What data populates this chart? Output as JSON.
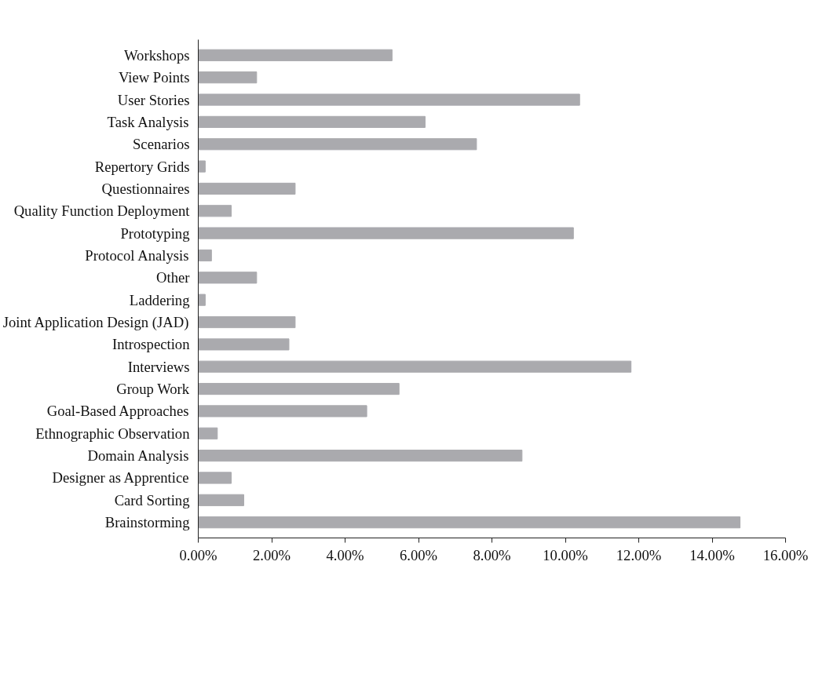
{
  "chart_data": {
    "type": "bar",
    "orientation": "horizontal",
    "color": "#aaaaae",
    "categories": [
      "Workshops",
      "View Points",
      "User Stories",
      "Task Analysis",
      "Scenarios",
      "Repertory Grids",
      "Questionnaires",
      "Quality Function Deployment",
      "Prototyping",
      "Protocol Analysis",
      "Other",
      "Laddering",
      "Joint Application Design (JAD)",
      "Introspection",
      "Interviews",
      "Group Work",
      "Goal-Based Approaches",
      "Ethnographic Observation",
      "Domain Analysis",
      "Designer as Apprentice",
      "Card Sorting",
      "Brainstorming"
    ],
    "values": [
      5.28,
      1.59,
      10.39,
      6.18,
      7.58,
      0.19,
      2.64,
      0.9,
      10.22,
      0.36,
      1.59,
      0.19,
      2.64,
      2.47,
      11.79,
      5.47,
      4.59,
      0.52,
      8.82,
      0.9,
      1.24,
      14.76
    ],
    "xlim": [
      0,
      16
    ],
    "xticks": [
      {
        "value": 0,
        "label": "0.00%"
      },
      {
        "value": 2,
        "label": "2.00%"
      },
      {
        "value": 4,
        "label": "4.00%"
      },
      {
        "value": 6,
        "label": "6.00%"
      },
      {
        "value": 8,
        "label": "8.00%"
      },
      {
        "value": 10,
        "label": "10.00%"
      },
      {
        "value": 12,
        "label": "12.00%"
      },
      {
        "value": 14,
        "label": "14.00%"
      },
      {
        "value": 16,
        "label": "16.00%"
      }
    ],
    "grid": false
  }
}
